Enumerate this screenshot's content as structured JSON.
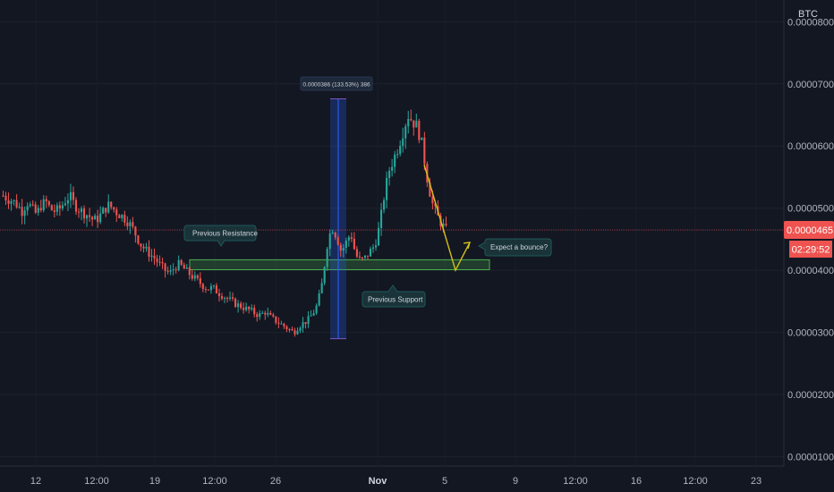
{
  "chart_data": {
    "type": "candlestick",
    "symbol": "BTC",
    "y_axis": {
      "ticks": [
        "0.0000100",
        "0.0000200",
        "0.0000300",
        "0.0000400",
        "0.0000500",
        "0.0000600",
        "0.0000700",
        "0.0000800"
      ],
      "tick_values": [
        1e-05,
        2e-05,
        3e-05,
        4e-05,
        5e-05,
        6e-05,
        7e-05,
        8e-05
      ],
      "range": [
        8.5e-06,
        8.35e-05
      ]
    },
    "x_axis": {
      "labels": [
        {
          "text": "12",
          "bold": false
        },
        {
          "text": "12:00",
          "bold": false
        },
        {
          "text": "19",
          "bold": false
        },
        {
          "text": "12:00",
          "bold": false
        },
        {
          "text": "26",
          "bold": false
        },
        {
          "text": "Nov",
          "bold": true
        },
        {
          "text": "5",
          "bold": false
        },
        {
          "text": "9",
          "bold": false
        },
        {
          "text": "12:00",
          "bold": false
        },
        {
          "text": "16",
          "bold": false
        },
        {
          "text": "12:00",
          "bold": false
        },
        {
          "text": "23",
          "bold": false
        }
      ]
    },
    "current_price": "0.0000465",
    "current_price_value": 4.65e-05,
    "countdown": "02:29:52",
    "up_color": "#26a69a",
    "down_color": "#ef5350",
    "price_path": [
      5.2e-05,
      5.15e-05,
      5.12e-05,
      5.05e-05,
      4.95e-05,
      5.1e-05,
      5e-05,
      4.9e-05,
      5.05e-05,
      5.1e-05,
      4.98e-05,
      4.95e-05,
      5e-05,
      5.12e-05,
      5.2e-05,
      5.05e-05,
      4.98e-05,
      4.92e-05,
      4.88e-05,
      4.8e-05,
      4.84e-05,
      4.95e-05,
      5.05e-05,
      5e-05,
      4.92e-05,
      4.87e-05,
      4.8e-05,
      4.7e-05,
      4.55e-05,
      4.4e-05,
      4.32e-05,
      4.25e-05,
      4.18e-05,
      4.08e-05,
      4e-05,
      3.95e-05,
      4.05e-05,
      4.1e-05,
      4.02e-05,
      3.95e-05,
      3.88e-05,
      3.82e-05,
      3.75e-05,
      3.7e-05,
      3.72e-05,
      3.65e-05,
      3.6e-05,
      3.55e-05,
      3.5e-05,
      3.45e-05,
      3.42e-05,
      3.38e-05,
      3.35e-05,
      3.3e-05,
      3.28e-05,
      3.33e-05,
      3.25e-05,
      3.2e-05,
      3.15e-05,
      3.1e-05,
      3.05e-05,
      3e-05,
      3.1e-05,
      3.15e-05,
      3.2e-05,
      3.3e-05,
      3.45e-05,
      3.8e-05,
      4.4e-05,
      4.7e-05,
      4.55e-05,
      4.3e-05,
      4.45e-05,
      4.6e-05,
      4.25e-05,
      4.15e-05,
      4.2e-05,
      4.3e-05,
      4.4e-05,
      4.7e-05,
      5.2e-05,
      5.6e-05,
      5.8e-05,
      6e-05,
      6.25e-05,
      6.5e-05,
      6.4e-05,
      6.3e-05,
      6e-05,
      5.5e-05,
      5.1e-05,
      4.9e-05,
      4.75e-05,
      4.65e-05
    ],
    "annotations": {
      "measure_label": "0.0000386 (133.53%) 386",
      "measure_from": 2.9e-05,
      "measure_to": 6.76e-05,
      "previous_resistance": "Previous Resistance",
      "previous_support": "Previous Support",
      "expect_bounce": "Expect a bounce?",
      "zone_top": 4.17e-05,
      "zone_bottom": 4.01e-05,
      "projection": [
        5.7e-05,
        4e-05,
        4.45e-05
      ]
    }
  }
}
